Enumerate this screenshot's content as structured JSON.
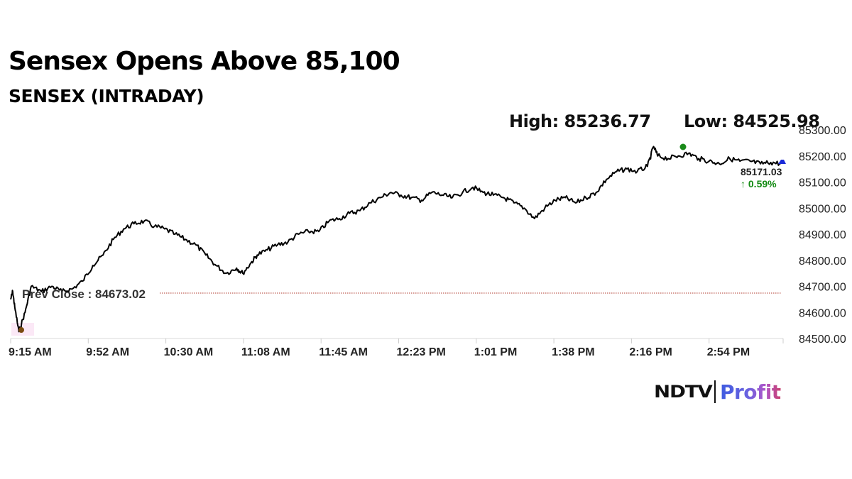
{
  "header": {
    "title": "Sensex Opens Above 85,100",
    "subtitle": "SENSEX (INTRADAY)"
  },
  "stats": {
    "high_label": "High: 85236.77",
    "low_label": "Low: 84525.98"
  },
  "last": {
    "value": "85171.03",
    "change": "↑ 0.59%"
  },
  "prev_close": {
    "label": "Prev Close : 84673.02"
  },
  "logo": {
    "brand": "NDTV",
    "product": "Profit"
  },
  "colors": {
    "line": "#000000",
    "high_marker": "#1a8a1a",
    "low_marker": "#7a4a10",
    "last_marker": "#1a2ad8",
    "prev_close_line": "#b03a2e",
    "change_up": "#128a12",
    "grid": "#d8d8d8"
  },
  "chart_data": {
    "type": "line",
    "title": "Sensex Opens Above 85,100",
    "subtitle": "SENSEX (INTRADAY)",
    "xlabel": "",
    "ylabel": "",
    "ylim": [
      84500,
      85300
    ],
    "y_ticks": [
      "85300.00",
      "85200.00",
      "85100.00",
      "85000.00",
      "84900.00",
      "84800.00",
      "84700.00",
      "84600.00",
      "84500.00"
    ],
    "x_ticks": [
      "9:15 AM",
      "9:52 AM",
      "10:30 AM",
      "11:08 AM",
      "11:45 AM",
      "12:23 PM",
      "1:01 PM",
      "1:38 PM",
      "2:16 PM",
      "2:54 PM"
    ],
    "grid": false,
    "legend": null,
    "annotations": {
      "high": 85236.77,
      "low": 84525.98,
      "prev_close": 84673.02,
      "last": 85171.03,
      "change_pct": 0.59
    },
    "series": [
      {
        "name": "SENSEX",
        "x": [
          "9:15",
          "9:16",
          "9:17",
          "9:19",
          "9:22",
          "9:25",
          "9:30",
          "9:35",
          "9:40",
          "9:45",
          "9:50",
          "9:55",
          "10:00",
          "10:05",
          "10:10",
          "10:15",
          "10:20",
          "10:25",
          "10:30",
          "10:35",
          "10:40",
          "10:45",
          "10:50",
          "10:55",
          "11:00",
          "11:05",
          "11:08",
          "11:12",
          "11:15",
          "11:20",
          "11:25",
          "11:30",
          "11:35",
          "11:40",
          "11:45",
          "11:50",
          "11:55",
          "12:00",
          "12:05",
          "12:10",
          "12:15",
          "12:20",
          "12:25",
          "12:30",
          "12:35",
          "12:40",
          "12:45",
          "12:50",
          "12:55",
          "13:00",
          "13:05",
          "13:10",
          "13:15",
          "13:20",
          "13:25",
          "13:30",
          "13:35",
          "13:40",
          "13:45",
          "13:50",
          "13:55",
          "14:00",
          "14:05",
          "14:10",
          "14:15",
          "14:20",
          "14:25",
          "14:28",
          "14:30",
          "14:35",
          "14:40",
          "14:45",
          "14:50",
          "14:55",
          "15:00",
          "15:05",
          "15:10",
          "15:15",
          "15:20",
          "15:25",
          "15:30"
        ],
        "values": [
          84650,
          84680,
          84620,
          84526,
          84600,
          84700,
          84680,
          84700,
          84680,
          84690,
          84720,
          84780,
          84820,
          84880,
          84920,
          84940,
          84950,
          84930,
          84920,
          84900,
          84880,
          84860,
          84820,
          84780,
          84750,
          84770,
          84750,
          84790,
          84820,
          84840,
          84860,
          84870,
          84900,
          84910,
          84910,
          84950,
          84960,
          84980,
          84990,
          85020,
          85040,
          85060,
          85050,
          85040,
          85030,
          85060,
          85050,
          85040,
          85060,
          85080,
          85060,
          85050,
          85040,
          85020,
          85000,
          84960,
          85000,
          85030,
          85040,
          85020,
          85040,
          85060,
          85110,
          85140,
          85150,
          85140,
          85160,
          85236,
          85200,
          85190,
          85200,
          85210,
          85190,
          85180,
          85170,
          85190,
          85180,
          85180,
          85170,
          85175,
          85171
        ]
      }
    ]
  }
}
